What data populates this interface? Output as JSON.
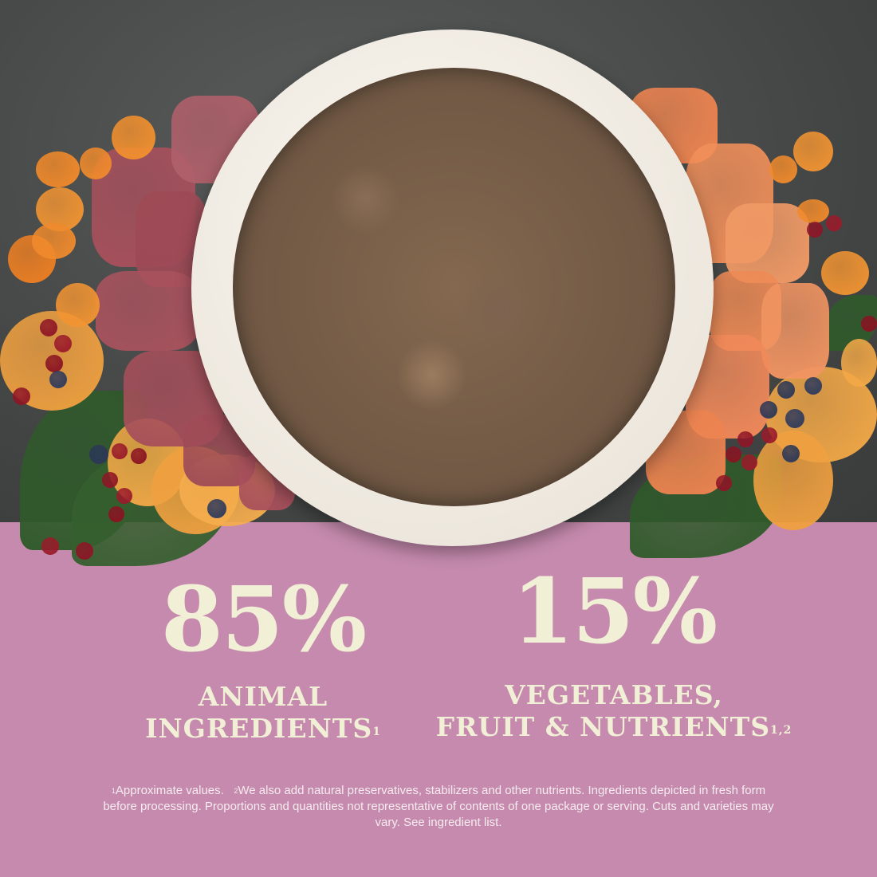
{
  "image": {
    "colors": {
      "background_top": "#434645",
      "panel": "#c58aad",
      "text": "#f1efd6"
    },
    "depiction": [
      "bowl-of-wet-food",
      "beef-chunks",
      "salmon-chunks",
      "carrot-slices",
      "sweet-potato-slices",
      "spinach-leaves",
      "cranberries",
      "blueberries"
    ]
  },
  "stats": [
    {
      "value": "85%",
      "label_line1": "ANIMAL",
      "label_line2": "INGREDIENTS",
      "footnote_ref": "1"
    },
    {
      "value": "15%",
      "label_line1": "VEGETABLES,",
      "label_line2": "FRUIT & NUTRIENTS",
      "footnote_ref": "1,2"
    }
  ],
  "footnote": {
    "note1_mark": "1",
    "note1": "Approximate values.",
    "note2_mark": "2",
    "note2": "We also add natural preservatives, stabilizers and other nutrients. Ingredients depicted in fresh form before processing. Proportions and quantities not representative of contents of one package or serving. Cuts and varieties may vary. See ingredient list."
  }
}
